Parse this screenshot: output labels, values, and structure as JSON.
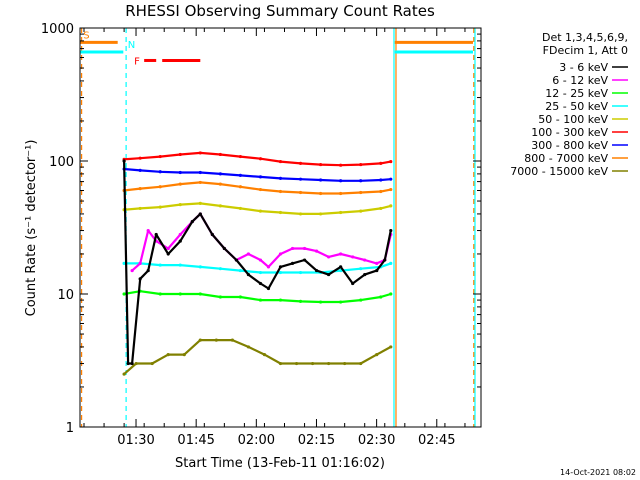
{
  "chart_data": {
    "type": "line",
    "title": "RHESSI Observing Summary Count Rates",
    "xlabel": "Start Time (13-Feb-11 01:16:02)",
    "ylabel": "Count Rate (s⁻¹ detector⁻¹)",
    "yscale": "log",
    "ylim": [
      1,
      1000
    ],
    "xlim_minutes": [
      0,
      100
    ],
    "x_ticks": [
      {
        "label": "01:30",
        "t": 13.97
      },
      {
        "label": "01:45",
        "t": 28.97
      },
      {
        "label": "02:00",
        "t": 43.97
      },
      {
        "label": "02:15",
        "t": 58.97
      },
      {
        "label": "02:30",
        "t": 73.97
      },
      {
        "label": "02:45",
        "t": 88.97
      }
    ],
    "y_ticks": [
      {
        "label": "1",
        "v": 1
      },
      {
        "label": "10",
        "v": 10
      },
      {
        "label": "100",
        "v": 100
      },
      {
        "label": "1000",
        "v": 1000
      }
    ],
    "legend_header": [
      "Det 1,3,4,5,6,9,",
      "FDecim 1, Att 0"
    ],
    "series": [
      {
        "name": "3 - 6 keV",
        "color": "#000000",
        "t": [
          11,
          12,
          13,
          15,
          17,
          19,
          22,
          25,
          28,
          30,
          33,
          36,
          39,
          42,
          45,
          47,
          50,
          53,
          56,
          59,
          62,
          65,
          68,
          71,
          74,
          76,
          77.5
        ],
        "v": [
          100,
          3,
          3,
          13,
          15,
          28,
          20,
          25,
          35,
          40,
          28,
          22,
          18,
          14,
          12,
          11,
          16,
          17,
          18,
          15,
          14,
          16,
          12,
          14,
          15,
          18,
          30
        ]
      },
      {
        "name": "6 - 12 keV",
        "color": "#ff00ff",
        "t": [
          13,
          15,
          17,
          19,
          22,
          25,
          28,
          30,
          33,
          36,
          39,
          42,
          45,
          47,
          50,
          53,
          56,
          59,
          62,
          65,
          68,
          71,
          74,
          76,
          77.5
        ],
        "v": [
          15,
          17,
          30,
          25,
          22,
          28,
          35,
          40,
          28,
          22,
          18,
          20,
          18,
          16,
          20,
          22,
          22,
          21,
          19,
          20,
          19,
          18,
          17,
          18,
          28
        ]
      },
      {
        "name": "12 - 25 keV",
        "color": "#00ff00",
        "t": [
          11,
          15,
          20,
          25,
          30,
          35,
          40,
          45,
          50,
          55,
          60,
          65,
          70,
          75,
          77.5
        ],
        "v": [
          10,
          10.5,
          10,
          10,
          10,
          9.5,
          9.5,
          9,
          9,
          8.8,
          8.7,
          8.7,
          9,
          9.5,
          10
        ]
      },
      {
        "name": "25 - 50 keV",
        "color": "#00ffff",
        "t": [
          11,
          15,
          20,
          25,
          30,
          35,
          40,
          45,
          50,
          55,
          60,
          65,
          70,
          75,
          77.5
        ],
        "v": [
          17,
          17,
          16.5,
          16.5,
          16,
          15.5,
          15,
          14.5,
          14.5,
          14.5,
          14.5,
          15,
          15.5,
          16,
          17
        ]
      },
      {
        "name": "50 - 100 keV",
        "color": "#cccc00",
        "t": [
          11,
          15,
          20,
          25,
          30,
          35,
          40,
          45,
          50,
          55,
          60,
          65,
          70,
          75,
          77.5
        ],
        "v": [
          43,
          44,
          45,
          47,
          48,
          46,
          44,
          42,
          41,
          40,
          40,
          41,
          42,
          44,
          46
        ]
      },
      {
        "name": "100 - 300 keV",
        "color": "#ff0000",
        "t": [
          11,
          15,
          20,
          25,
          30,
          35,
          40,
          45,
          50,
          55,
          60,
          65,
          70,
          75,
          77.5
        ],
        "v": [
          103,
          105,
          108,
          112,
          115,
          112,
          108,
          104,
          99,
          96,
          94,
          93,
          94,
          96,
          99
        ]
      },
      {
        "name": "300 - 800 keV",
        "color": "#0000ff",
        "t": [
          11,
          15,
          20,
          25,
          30,
          35,
          40,
          45,
          50,
          55,
          60,
          65,
          70,
          75,
          77.5
        ],
        "v": [
          87,
          85,
          83,
          82,
          82,
          80,
          78,
          76,
          74,
          73,
          72,
          71,
          71,
          72,
          73
        ]
      },
      {
        "name": "800 - 7000 keV",
        "color": "#ff8000",
        "t": [
          11,
          15,
          20,
          25,
          30,
          35,
          40,
          45,
          50,
          55,
          60,
          65,
          70,
          75,
          77.5
        ],
        "v": [
          60,
          62,
          64,
          67,
          69,
          67,
          64,
          61,
          59,
          58,
          57,
          57,
          58,
          59,
          61
        ]
      },
      {
        "name": "7000 - 15000 keV",
        "color": "#808000",
        "t": [
          11,
          14,
          18,
          22,
          26,
          30,
          34,
          38,
          42,
          46,
          50,
          54,
          58,
          62,
          66,
          70,
          74,
          77.5
        ],
        "v": [
          2.5,
          3,
          3,
          3.5,
          3.5,
          4.5,
          4.5,
          4.5,
          4,
          3.5,
          3,
          3,
          3,
          3,
          3,
          3,
          3.5,
          4
        ]
      }
    ],
    "flags": [
      {
        "name": "S",
        "color": "#ff8000",
        "segments": [
          [
            0,
            9.4
          ],
          [
            78.5,
            98
          ]
        ],
        "level": 780
      },
      {
        "name": "N",
        "color": "#00ffff",
        "segments": [
          [
            0,
            10.8
          ],
          [
            78.5,
            98
          ]
        ],
        "level": 660
      },
      {
        "name": "F",
        "color": "#ff0000",
        "segments": [
          [
            16,
            19
          ],
          [
            20.5,
            30
          ]
        ],
        "level": 570
      }
    ],
    "vertical_markers": [
      {
        "t": 0.4,
        "color": "#ff8000",
        "style": "dashed"
      },
      {
        "t": 11.5,
        "color": "#00ffff",
        "style": "dashed"
      },
      {
        "t": 78.3,
        "color": "#00ffff",
        "style": "solid"
      },
      {
        "t": 78.8,
        "color": "#ff8000",
        "style": "solid"
      },
      {
        "t": 98.2,
        "color": "#ff8000",
        "style": "dashed"
      },
      {
        "t": 98.5,
        "color": "#00ffff",
        "style": "solid"
      }
    ],
    "footer_date": "14-Oct-2021 08:02",
    "grid": false,
    "legend_position": "right"
  }
}
